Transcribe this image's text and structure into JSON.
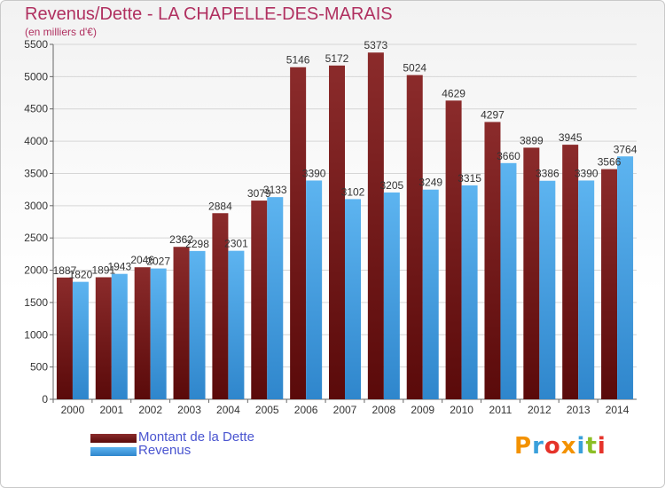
{
  "chart_data": {
    "type": "bar",
    "title": "Revenus/Dette - LA CHAPELLE-DES-MARAIS",
    "subtitle": "(en milliers d'€)",
    "categories": [
      "2000",
      "2001",
      "2002",
      "2003",
      "2004",
      "2005",
      "2006",
      "2007",
      "2008",
      "2009",
      "2010",
      "2011",
      "2012",
      "2013",
      "2014"
    ],
    "series": [
      {
        "name": "Montant de la Dette",
        "color": "#8b1a1a",
        "values": [
          1887,
          1891,
          2046,
          2362,
          2884,
          3079,
          5146,
          5172,
          5373,
          5024,
          4629,
          4297,
          3899,
          3945,
          3566
        ]
      },
      {
        "name": "Revenus",
        "color": "#4da6e8",
        "values": [
          1820,
          1943,
          2027,
          2298,
          2301,
          3133,
          3390,
          3102,
          3205,
          3249,
          3315,
          3660,
          3386,
          3390,
          3764
        ]
      }
    ],
    "ylim": [
      0,
      5500
    ],
    "yticks": [
      0,
      500,
      1000,
      1500,
      2000,
      2500,
      3000,
      3500,
      4000,
      4500,
      5000,
      5500
    ],
    "grid": true,
    "legend": "bottom-left"
  },
  "logo": {
    "text": "Proxiti",
    "colors": [
      "#f39200",
      "#3aa0db",
      "#e5332a",
      "#f39200",
      "#3aa0db",
      "#8cbf26",
      "#e5332a"
    ]
  }
}
